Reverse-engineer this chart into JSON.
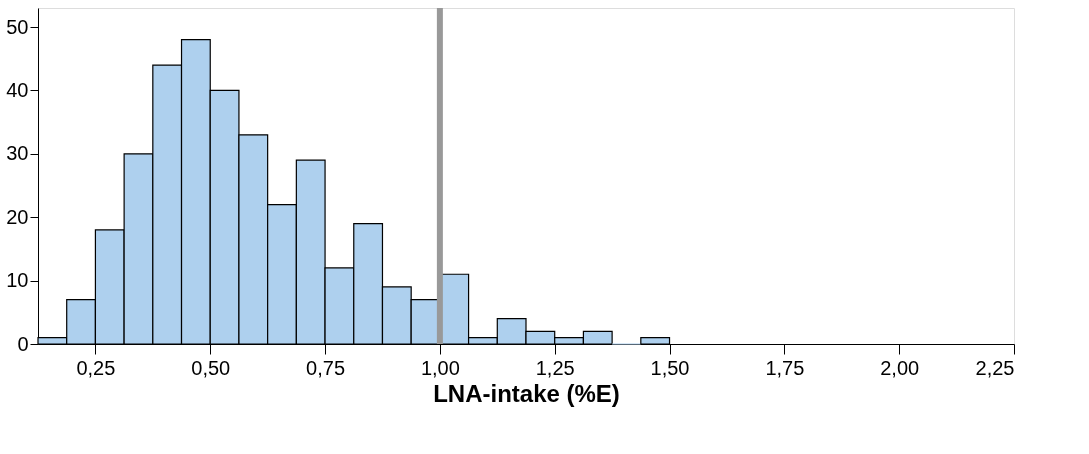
{
  "chart_data": {
    "type": "histogram",
    "xlabel": "LNA-intake (%E)",
    "bins": [
      0.125,
      0.1875,
      0.25,
      0.3125,
      0.375,
      0.4375,
      0.5,
      0.5625,
      0.625,
      0.6875,
      0.75,
      0.8125,
      0.875,
      0.9375,
      1.0,
      1.0625,
      1.125,
      1.1875,
      1.25,
      1.3125,
      1.375,
      1.4375,
      1.5
    ],
    "values": [
      1,
      7,
      18,
      30,
      44,
      48,
      40,
      33,
      22,
      29,
      12,
      19,
      9,
      7,
      11,
      1,
      4,
      2,
      1,
      2,
      0,
      1
    ],
    "color": "#aed0ee",
    "xlim": [
      0.125,
      2.25
    ],
    "xticks": [
      {
        "value": 0.25,
        "label": "0,25"
      },
      {
        "value": 0.5,
        "label": "0,50"
      },
      {
        "value": 0.75,
        "label": "0,75"
      },
      {
        "value": 1.0,
        "label": "1,00"
      },
      {
        "value": 1.25,
        "label": "1,25"
      },
      {
        "value": 1.5,
        "label": "1,50"
      },
      {
        "value": 1.75,
        "label": "1,75"
      },
      {
        "value": 2.0,
        "label": "2,00"
      },
      {
        "value": 2.25,
        "label": "2,25"
      }
    ],
    "ylim": [
      0,
      53
    ],
    "yticks": [
      0,
      10,
      20,
      30,
      40,
      50
    ],
    "ref_lines": [
      {
        "axis": "x",
        "value": 1.0,
        "color": "#999999"
      }
    ],
    "grid": false
  }
}
